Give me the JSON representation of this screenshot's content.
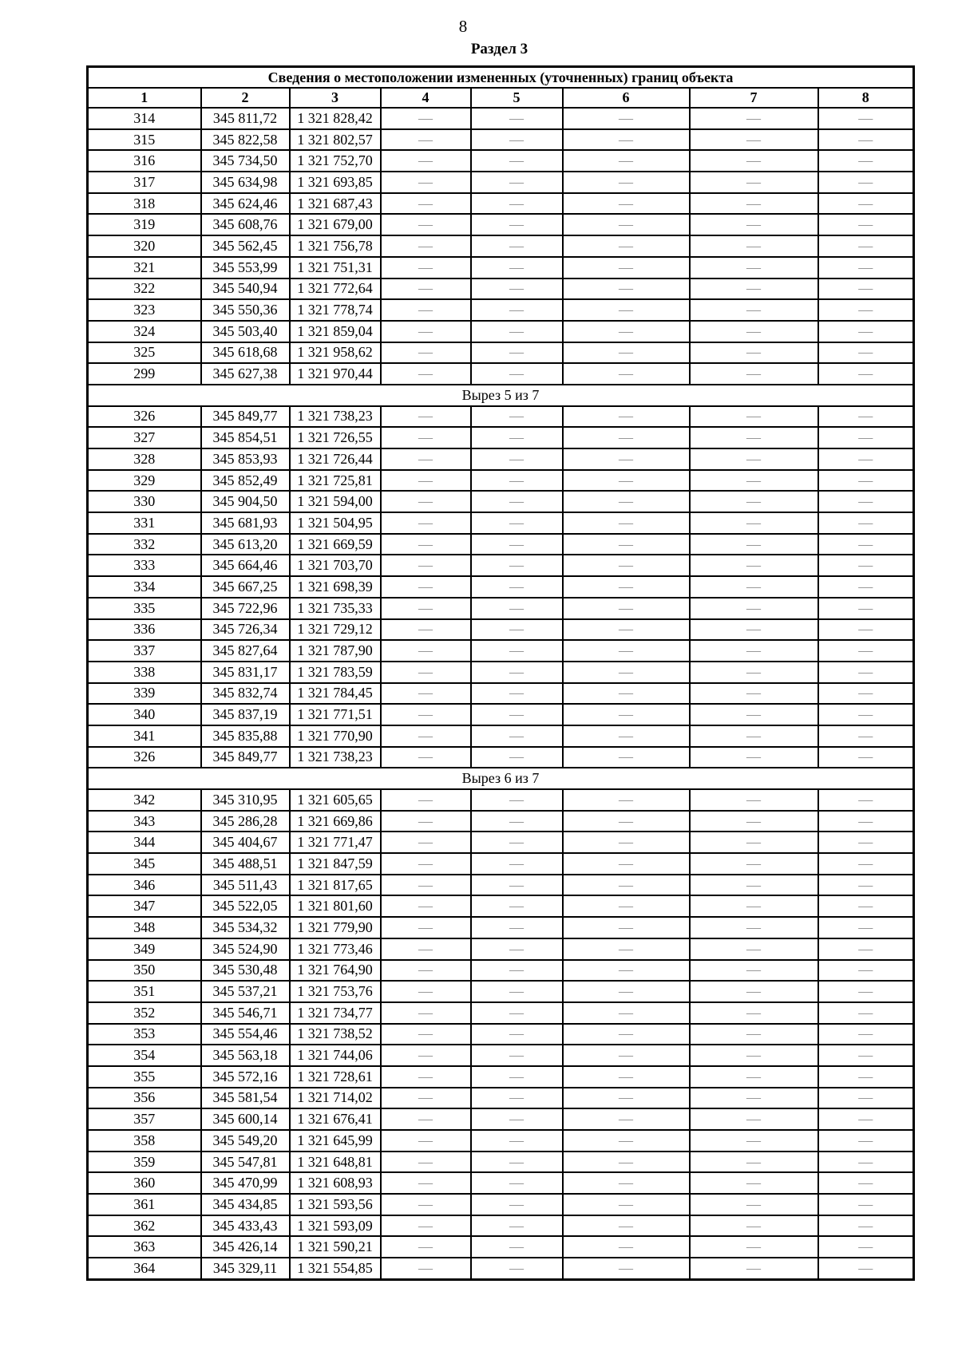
{
  "page": {
    "number": "8",
    "section_title": "Раздел 3"
  },
  "table": {
    "title": "Сведения о местоположении измененных (уточненных) границ объекта",
    "headers": [
      "1",
      "2",
      "3",
      "4",
      "5",
      "6",
      "7",
      "8"
    ],
    "empty_marker": "—",
    "empty_columns_count": 5,
    "colors": {
      "border": "#000000",
      "dash": "#8a8a8a"
    },
    "rows": [
      {
        "n": "314",
        "x": "345 811,72",
        "y": "1 321 828,42"
      },
      {
        "n": "315",
        "x": "345 822,58",
        "y": "1 321 802,57"
      },
      {
        "n": "316",
        "x": "345 734,50",
        "y": "1 321 752,70"
      },
      {
        "n": "317",
        "x": "345 634,98",
        "y": "1 321 693,85"
      },
      {
        "n": "318",
        "x": "345 624,46",
        "y": "1 321 687,43"
      },
      {
        "n": "319",
        "x": "345 608,76",
        "y": "1 321 679,00"
      },
      {
        "n": "320",
        "x": "345 562,45",
        "y": "1 321 756,78"
      },
      {
        "n": "321",
        "x": "345 553,99",
        "y": "1 321 751,31"
      },
      {
        "n": "322",
        "x": "345 540,94",
        "y": "1 321 772,64"
      },
      {
        "n": "323",
        "x": "345 550,36",
        "y": "1 321 778,74"
      },
      {
        "n": "324",
        "x": "345 503,40",
        "y": "1 321 859,04"
      },
      {
        "n": "325",
        "x": "345 618,68",
        "y": "1 321 958,62"
      },
      {
        "n": "299",
        "x": "345 627,38",
        "y": "1 321 970,44"
      },
      {
        "section": "Вырез 5 из 7"
      },
      {
        "n": "326",
        "x": "345 849,77",
        "y": "1 321 738,23"
      },
      {
        "n": "327",
        "x": "345 854,51",
        "y": "1 321 726,55"
      },
      {
        "n": "328",
        "x": "345 853,93",
        "y": "1 321 726,44"
      },
      {
        "n": "329",
        "x": "345 852,49",
        "y": "1 321 725,81"
      },
      {
        "n": "330",
        "x": "345 904,50",
        "y": "1 321 594,00"
      },
      {
        "n": "331",
        "x": "345 681,93",
        "y": "1 321 504,95"
      },
      {
        "n": "332",
        "x": "345 613,20",
        "y": "1 321 669,59"
      },
      {
        "n": "333",
        "x": "345 664,46",
        "y": "1 321 703,70"
      },
      {
        "n": "334",
        "x": "345 667,25",
        "y": "1 321 698,39"
      },
      {
        "n": "335",
        "x": "345 722,96",
        "y": "1 321 735,33"
      },
      {
        "n": "336",
        "x": "345 726,34",
        "y": "1 321 729,12"
      },
      {
        "n": "337",
        "x": "345 827,64",
        "y": "1 321 787,90"
      },
      {
        "n": "338",
        "x": "345 831,17",
        "y": "1 321 783,59"
      },
      {
        "n": "339",
        "x": "345 832,74",
        "y": "1 321 784,45"
      },
      {
        "n": "340",
        "x": "345 837,19",
        "y": "1 321 771,51"
      },
      {
        "n": "341",
        "x": "345 835,88",
        "y": "1 321 770,90"
      },
      {
        "n": "326",
        "x": "345 849,77",
        "y": "1 321 738,23"
      },
      {
        "section": "Вырез 6 из 7"
      },
      {
        "n": "342",
        "x": "345 310,95",
        "y": "1 321 605,65"
      },
      {
        "n": "343",
        "x": "345 286,28",
        "y": "1 321 669,86"
      },
      {
        "n": "344",
        "x": "345 404,67",
        "y": "1 321 771,47"
      },
      {
        "n": "345",
        "x": "345 488,51",
        "y": "1 321 847,59"
      },
      {
        "n": "346",
        "x": "345 511,43",
        "y": "1 321 817,65"
      },
      {
        "n": "347",
        "x": "345 522,05",
        "y": "1 321 801,60"
      },
      {
        "n": "348",
        "x": "345 534,32",
        "y": "1 321 779,90"
      },
      {
        "n": "349",
        "x": "345 524,90",
        "y": "1 321 773,46"
      },
      {
        "n": "350",
        "x": "345 530,48",
        "y": "1 321 764,90"
      },
      {
        "n": "351",
        "x": "345 537,21",
        "y": "1 321 753,76"
      },
      {
        "n": "352",
        "x": "345 546,71",
        "y": "1 321 734,77"
      },
      {
        "n": "353",
        "x": "345 554,46",
        "y": "1 321 738,52"
      },
      {
        "n": "354",
        "x": "345 563,18",
        "y": "1 321 744,06"
      },
      {
        "n": "355",
        "x": "345 572,16",
        "y": "1 321 728,61"
      },
      {
        "n": "356",
        "x": "345 581,54",
        "y": "1 321 714,02"
      },
      {
        "n": "357",
        "x": "345 600,14",
        "y": "1 321 676,41"
      },
      {
        "n": "358",
        "x": "345 549,20",
        "y": "1 321 645,99"
      },
      {
        "n": "359",
        "x": "345 547,81",
        "y": "1 321 648,81"
      },
      {
        "n": "360",
        "x": "345 470,99",
        "y": "1 321 608,93"
      },
      {
        "n": "361",
        "x": "345 434,85",
        "y": "1 321 593,56"
      },
      {
        "n": "362",
        "x": "345 433,43",
        "y": "1 321 593,09"
      },
      {
        "n": "363",
        "x": "345 426,14",
        "y": "1 321 590,21"
      },
      {
        "n": "364",
        "x": "345 329,11",
        "y": "1 321 554,85"
      }
    ]
  }
}
